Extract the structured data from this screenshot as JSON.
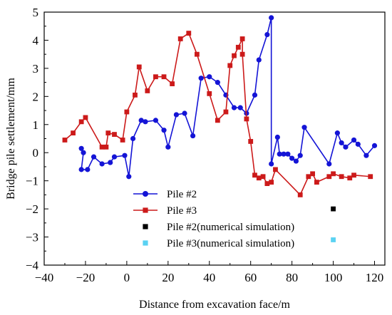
{
  "chart_data": {
    "type": "line",
    "xlabel": "Distance from excavation face/m",
    "ylabel": "Bridge pile settlement/mm",
    "xlim": [
      -40,
      125
    ],
    "ylim": [
      -4,
      5
    ],
    "xticks": [
      -40,
      -20,
      0,
      20,
      40,
      60,
      80,
      100,
      120
    ],
    "yticks": [
      -4,
      -3,
      -2,
      -1,
      0,
      1,
      2,
      3,
      4,
      5
    ],
    "grid": false,
    "legend_position": "bottom-left",
    "series": [
      {
        "name": "Pile #2",
        "color": "#1414d6",
        "marker": "circle",
        "points": [
          [
            -22,
            0.15
          ],
          [
            -21,
            0.0
          ],
          [
            -22,
            -0.6
          ],
          [
            -19,
            -0.6
          ],
          [
            -16,
            -0.15
          ],
          [
            -12,
            -0.4
          ],
          [
            -8,
            -0.35
          ],
          [
            -6,
            -0.15
          ],
          [
            -1,
            -0.1
          ],
          [
            1,
            -0.85
          ],
          [
            3,
            0.5
          ],
          [
            7,
            1.15
          ],
          [
            9,
            1.1
          ],
          [
            14,
            1.15
          ],
          [
            18,
            0.8
          ],
          [
            20,
            0.2
          ],
          [
            24,
            1.35
          ],
          [
            28,
            1.4
          ],
          [
            32,
            0.6
          ],
          [
            36,
            2.65
          ],
          [
            40,
            2.7
          ],
          [
            44,
            2.5
          ],
          [
            48,
            2.05
          ],
          [
            52,
            1.6
          ],
          [
            55,
            1.6
          ],
          [
            58,
            1.4
          ],
          [
            62,
            2.05
          ],
          [
            64,
            3.3
          ],
          [
            68,
            4.2
          ],
          [
            70,
            4.8
          ],
          [
            70,
            -0.4
          ],
          [
            73,
            0.55
          ],
          [
            74,
            -0.05
          ],
          [
            76,
            -0.05
          ],
          [
            78,
            -0.05
          ],
          [
            80,
            -0.2
          ],
          [
            82,
            -0.3
          ],
          [
            84,
            -0.1
          ],
          [
            86,
            0.9
          ],
          [
            98,
            -0.4
          ],
          [
            102,
            0.7
          ],
          [
            104,
            0.35
          ],
          [
            106,
            0.2
          ],
          [
            110,
            0.45
          ],
          [
            112,
            0.3
          ],
          [
            116,
            -0.1
          ],
          [
            120,
            0.25
          ]
        ]
      },
      {
        "name": "Pile #3",
        "color": "#cc1a1a",
        "marker": "square",
        "points": [
          [
            -30,
            0.45
          ],
          [
            -26,
            0.7
          ],
          [
            -22,
            1.1
          ],
          [
            -20,
            1.25
          ],
          [
            -12,
            0.2
          ],
          [
            -10,
            0.2
          ],
          [
            -9,
            0.7
          ],
          [
            -6,
            0.65
          ],
          [
            -2,
            0.45
          ],
          [
            0,
            1.45
          ],
          [
            4,
            2.05
          ],
          [
            6,
            3.05
          ],
          [
            10,
            2.2
          ],
          [
            14,
            2.7
          ],
          [
            18,
            2.7
          ],
          [
            22,
            2.45
          ],
          [
            26,
            4.05
          ],
          [
            30,
            4.25
          ],
          [
            34,
            3.5
          ],
          [
            40,
            2.1
          ],
          [
            44,
            1.15
          ],
          [
            48,
            1.45
          ],
          [
            50,
            3.1
          ],
          [
            52,
            3.45
          ],
          [
            54,
            3.75
          ],
          [
            56,
            4.05
          ],
          [
            56,
            3.5
          ],
          [
            58,
            1.2
          ],
          [
            60,
            0.4
          ],
          [
            62,
            -0.8
          ],
          [
            64,
            -0.9
          ],
          [
            66,
            -0.85
          ],
          [
            68,
            -1.1
          ],
          [
            70,
            -1.05
          ],
          [
            72,
            -0.6
          ],
          [
            84,
            -1.5
          ],
          [
            88,
            -0.85
          ],
          [
            90,
            -0.75
          ],
          [
            92,
            -1.05
          ],
          [
            98,
            -0.85
          ],
          [
            100,
            -0.75
          ],
          [
            104,
            -0.85
          ],
          [
            108,
            -0.9
          ],
          [
            110,
            -0.8
          ],
          [
            118,
            -0.85
          ]
        ]
      },
      {
        "name": "Pile #2(numerical simulation)",
        "color": "#000000",
        "marker": "square",
        "points": [
          [
            100,
            -2.0
          ]
        ]
      },
      {
        "name": "Pile #3(numerical simulation)",
        "color": "#5ad2f2",
        "marker": "square",
        "points": [
          [
            100,
            -3.1
          ]
        ]
      }
    ]
  }
}
